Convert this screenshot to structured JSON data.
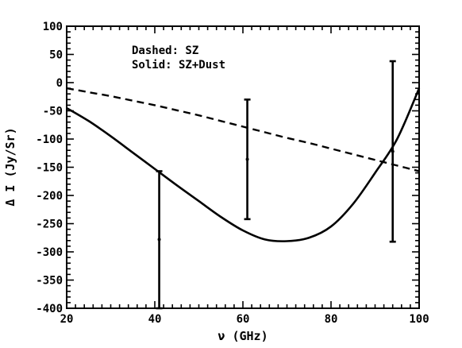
{
  "chart_data": {
    "type": "line",
    "title": "",
    "xlabel": "ν (GHz)",
    "ylabel": "Δ I (Jy/Sr)",
    "xlim": [
      20,
      100
    ],
    "ylim": [
      -400,
      100
    ],
    "x_ticks": [
      "20",
      "40",
      "60",
      "80",
      "100"
    ],
    "y_ticks": [
      "100",
      "50",
      "0",
      "-50",
      "-100",
      "-150",
      "-200",
      "-250",
      "-300",
      "-350",
      "-400"
    ],
    "grid": false,
    "annotations": [
      "Dashed: SZ",
      "Solid: SZ+Dust"
    ],
    "series": [
      {
        "style": "dashed",
        "x": [
          20,
          25,
          30,
          35,
          40,
          45,
          50,
          55,
          60,
          65,
          70,
          75,
          80,
          85,
          90,
          95,
          100
        ],
        "y": [
          -10,
          -17,
          -24,
          -32,
          -40,
          -49,
          -58,
          -68,
          -78,
          -88,
          -98,
          -107,
          -117,
          -127,
          -137,
          -147,
          -157
        ]
      },
      {
        "style": "solid",
        "x": [
          20,
          25,
          30,
          35,
          40,
          45,
          50,
          55,
          60,
          65,
          70,
          75,
          80,
          85,
          90,
          95,
          100
        ],
        "y": [
          -45,
          -68,
          -95,
          -124,
          -153,
          -182,
          -210,
          -238,
          -262,
          -278,
          -281,
          -275,
          -255,
          -215,
          -160,
          -100,
          -10
        ]
      }
    ],
    "error_bars": [
      {
        "x": 41,
        "y": -278,
        "ylow": -400,
        "yhigh": -157
      },
      {
        "x": 61,
        "y": -136,
        "ylow": -242,
        "yhigh": -30
      },
      {
        "x": 94,
        "y": -122,
        "ylow": -282,
        "yhigh": 38
      }
    ]
  }
}
